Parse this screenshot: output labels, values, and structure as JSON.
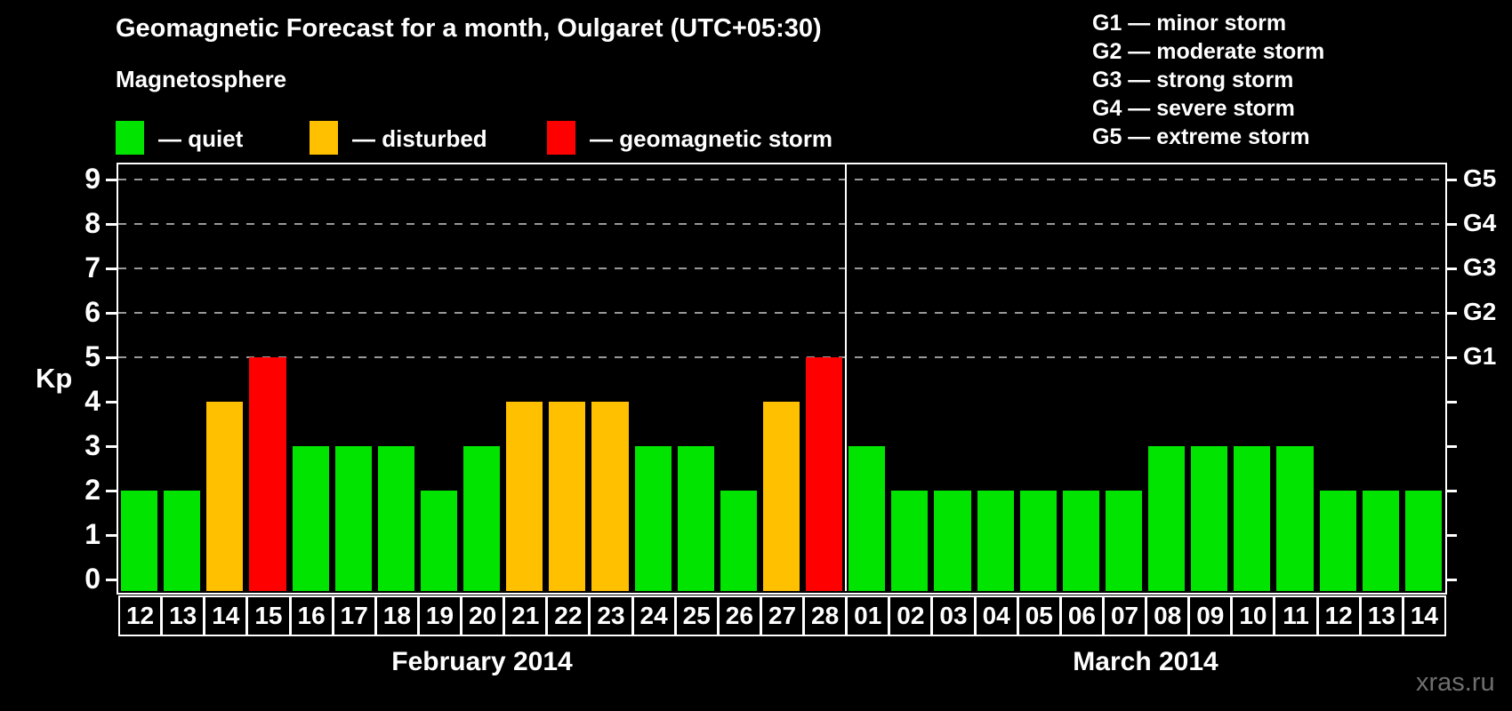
{
  "title": "Geomagnetic Forecast for a month, Oulgaret (UTC+05:30)",
  "legend": {
    "heading": "Magnetosphere",
    "items": [
      {
        "label": "— quiet",
        "status": "quiet",
        "color": "#00e400"
      },
      {
        "label": "— disturbed",
        "status": "disturbed",
        "color": "#ffc000"
      },
      {
        "label": "— geomagnetic storm",
        "status": "storm",
        "color": "#ff0000"
      }
    ]
  },
  "g_legend": [
    "G1 — minor storm",
    "G2 — moderate storm",
    "G3 — strong storm",
    "G4 — severe storm",
    "G5 — extreme storm"
  ],
  "axes": {
    "y_label": "Kp",
    "y_ticks": [
      0,
      1,
      2,
      3,
      4,
      5,
      6,
      7,
      8,
      9
    ],
    "right_labels": [
      {
        "kp": 5,
        "label": "G1"
      },
      {
        "kp": 6,
        "label": "G2"
      },
      {
        "kp": 7,
        "label": "G3"
      },
      {
        "kp": 8,
        "label": "G4"
      },
      {
        "kp": 9,
        "label": "G5"
      }
    ],
    "gridline_levels": [
      5,
      6,
      7,
      8,
      9
    ],
    "gridline_color": "#999999"
  },
  "months": [
    {
      "label": "February 2014",
      "days": 17
    },
    {
      "label": "March 2014",
      "days": 14
    }
  ],
  "watermark": "xras.ru",
  "chart_data": {
    "type": "bar",
    "title": "Geomagnetic Forecast for a month, Oulgaret (UTC+05:30)",
    "xlabel": "",
    "ylabel": "Kp",
    "ylim": [
      0,
      9
    ],
    "grid": "dashed horizontal at Kp 5-9 only",
    "legend_position": "top-left (status colors), top-right (G-scale)",
    "day_labels": [
      "12",
      "13",
      "14",
      "15",
      "16",
      "17",
      "18",
      "19",
      "20",
      "21",
      "22",
      "23",
      "24",
      "25",
      "26",
      "27",
      "28",
      "01",
      "02",
      "03",
      "04",
      "05",
      "06",
      "07",
      "08",
      "09",
      "10",
      "11",
      "12",
      "13",
      "14"
    ],
    "categories": [
      "Feb 12",
      "Feb 13",
      "Feb 14",
      "Feb 15",
      "Feb 16",
      "Feb 17",
      "Feb 18",
      "Feb 19",
      "Feb 20",
      "Feb 21",
      "Feb 22",
      "Feb 23",
      "Feb 24",
      "Feb 25",
      "Feb 26",
      "Feb 27",
      "Feb 28",
      "Mar 01",
      "Mar 02",
      "Mar 03",
      "Mar 04",
      "Mar 05",
      "Mar 06",
      "Mar 07",
      "Mar 08",
      "Mar 09",
      "Mar 10",
      "Mar 11",
      "Mar 12",
      "Mar 13",
      "Mar 14"
    ],
    "values": [
      2,
      2,
      4,
      5,
      3,
      3,
      3,
      2,
      3,
      4,
      4,
      4,
      3,
      3,
      2,
      4,
      5,
      3,
      2,
      2,
      2,
      2,
      2,
      2,
      3,
      3,
      3,
      3,
      2,
      2,
      2
    ],
    "statuses": [
      "quiet",
      "quiet",
      "disturbed",
      "storm",
      "quiet",
      "quiet",
      "quiet",
      "quiet",
      "quiet",
      "disturbed",
      "disturbed",
      "disturbed",
      "quiet",
      "quiet",
      "quiet",
      "disturbed",
      "storm",
      "quiet",
      "quiet",
      "quiet",
      "quiet",
      "quiet",
      "quiet",
      "quiet",
      "quiet",
      "quiet",
      "quiet",
      "quiet",
      "quiet",
      "quiet",
      "quiet"
    ],
    "status_colors": {
      "quiet": "#00e400",
      "disturbed": "#ffc000",
      "storm": "#ff0000"
    }
  }
}
